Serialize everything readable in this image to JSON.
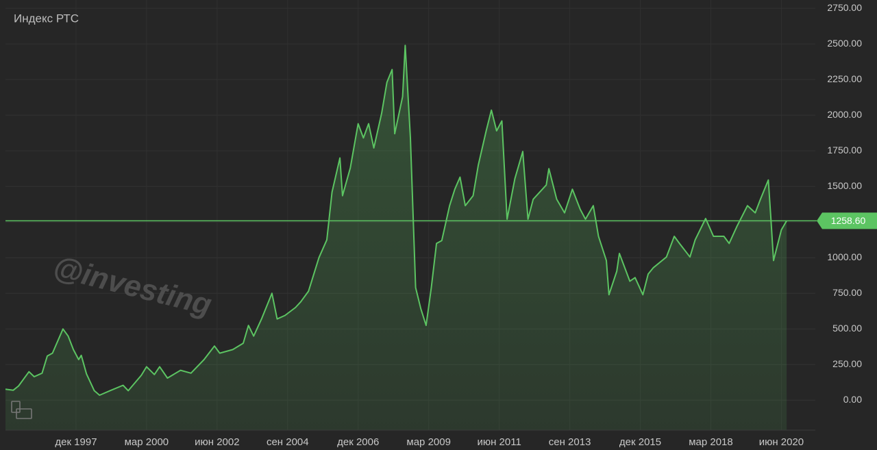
{
  "chart_data": {
    "type": "area",
    "title": "Индекс РТС",
    "watermark": "@investing",
    "series": [
      {
        "name": "Индекс РТС",
        "color": "#5cc462",
        "x": [
          "1995-09",
          "1995-12",
          "1996-02",
          "1996-06",
          "1996-08",
          "1996-11",
          "1997-01",
          "1997-03",
          "1997-07",
          "1997-09",
          "1997-11",
          "1998-01",
          "1998-02",
          "1998-04",
          "1998-07",
          "1998-09",
          "1999-01",
          "1999-06",
          "1999-08",
          "2000-01",
          "2000-03",
          "2000-06",
          "2000-08",
          "2000-11",
          "2001-04",
          "2001-08",
          "2002-01",
          "2002-05",
          "2002-07",
          "2002-12",
          "2003-04",
          "2003-06",
          "2003-08",
          "2003-11",
          "2004-03",
          "2004-05",
          "2004-08",
          "2004-12",
          "2005-02",
          "2005-05",
          "2005-09",
          "2005-12",
          "2006-02",
          "2006-05",
          "2006-06",
          "2006-09",
          "2006-12",
          "2007-02",
          "2007-04",
          "2007-06",
          "2007-09",
          "2007-11",
          "2008-01",
          "2008-02",
          "2008-05",
          "2008-06",
          "2008-08",
          "2008-10",
          "2008-12",
          "2009-02",
          "2009-04",
          "2009-06",
          "2009-08",
          "2009-11",
          "2010-01",
          "2010-03",
          "2010-05",
          "2010-08",
          "2010-10",
          "2011-01",
          "2011-03",
          "2011-05",
          "2011-07",
          "2011-09",
          "2011-12",
          "2012-03",
          "2012-05",
          "2012-07",
          "2012-12",
          "2013-01",
          "2013-04",
          "2013-07",
          "2013-10",
          "2014-01",
          "2014-03",
          "2014-06",
          "2014-08",
          "2014-11",
          "2014-12",
          "2015-03",
          "2015-04",
          "2015-08",
          "2015-10",
          "2016-01",
          "2016-03",
          "2016-05",
          "2016-10",
          "2017-01",
          "2017-03",
          "2017-07",
          "2017-09",
          "2018-01",
          "2018-04",
          "2018-08",
          "2018-10",
          "2019-01",
          "2019-05",
          "2019-08",
          "2019-10",
          "2020-01",
          "2020-02",
          "2020-03",
          "2020-06",
          "2020-08"
        ],
        "values": [
          77,
          70,
          100,
          200,
          165,
          190,
          310,
          330,
          500,
          450,
          355,
          285,
          315,
          185,
          67,
          35,
          67,
          105,
          67,
          175,
          235,
          180,
          235,
          155,
          210,
          190,
          285,
          380,
          330,
          355,
          400,
          525,
          450,
          570,
          750,
          570,
          595,
          650,
          690,
          765,
          1000,
          1125,
          1460,
          1700,
          1435,
          1630,
          1940,
          1840,
          1940,
          1770,
          2015,
          2230,
          2320,
          1870,
          2130,
          2490,
          1840,
          790,
          640,
          525,
          790,
          1100,
          1120,
          1365,
          1480,
          1565,
          1365,
          1435,
          1650,
          1890,
          2035,
          1890,
          1960,
          1270,
          1555,
          1745,
          1270,
          1410,
          1510,
          1625,
          1410,
          1315,
          1480,
          1340,
          1270,
          1365,
          1150,
          980,
          740,
          905,
          1030,
          835,
          860,
          740,
          885,
          930,
          1005,
          1150,
          1100,
          1005,
          1125,
          1275,
          1150,
          1150,
          1100,
          1220,
          1365,
          1315,
          1410,
          1545,
          1270,
          980,
          1195,
          1258.6
        ]
      }
    ],
    "price_line": {
      "value": 1258.6,
      "label": "1258.60"
    },
    "xlim": [
      "1995-09",
      "2021-07"
    ],
    "xticks": [
      {
        "value": "1997-12",
        "label": "дек 1997"
      },
      {
        "value": "2000-03",
        "label": "мар 2000"
      },
      {
        "value": "2002-06",
        "label": "июн 2002"
      },
      {
        "value": "2004-09",
        "label": "сен 2004"
      },
      {
        "value": "2006-12",
        "label": "дек 2006"
      },
      {
        "value": "2009-03",
        "label": "мар 2009"
      },
      {
        "value": "2011-06",
        "label": "июн 2011"
      },
      {
        "value": "2013-09",
        "label": "сен 2013"
      },
      {
        "value": "2015-12",
        "label": "дек 2015"
      },
      {
        "value": "2018-03",
        "label": "мар 2018"
      },
      {
        "value": "2020-06",
        "label": "июн 2020"
      }
    ],
    "ylim": [
      -210,
      2808
    ],
    "yticks": [
      {
        "value": 0,
        "label": "0.00"
      },
      {
        "value": 250,
        "label": "250.00"
      },
      {
        "value": 500,
        "label": "500.00"
      },
      {
        "value": 750,
        "label": "750.00"
      },
      {
        "value": 1000,
        "label": "1000.00"
      },
      {
        "value": 1250,
        "label": "1250.00"
      },
      {
        "value": 1500,
        "label": "1500.00"
      },
      {
        "value": 1750,
        "label": "1750.00"
      },
      {
        "value": 2000,
        "label": "2000.00"
      },
      {
        "value": 2250,
        "label": "2250.00"
      },
      {
        "value": 2500,
        "label": "2500.00"
      },
      {
        "value": 2750,
        "label": "2750.00"
      }
    ],
    "grid": true
  }
}
